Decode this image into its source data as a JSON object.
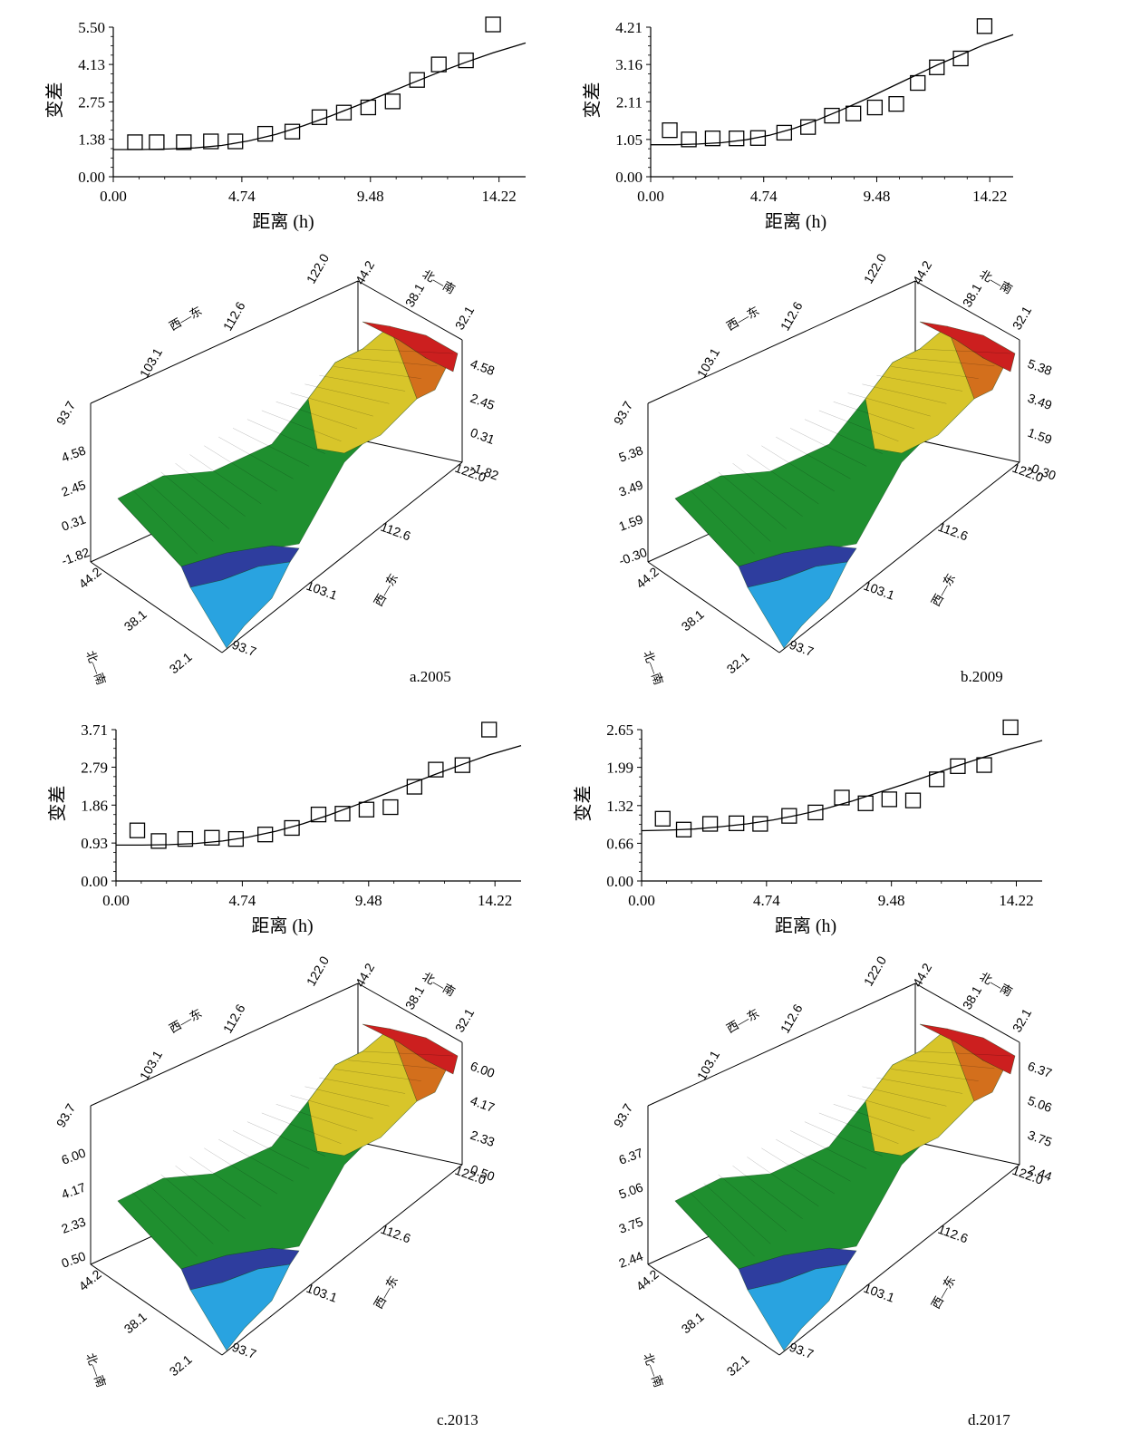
{
  "chart_data": [
    {
      "type": "scatter",
      "panel": "a",
      "xlabel": "距离 (h)",
      "ylabel": "变差",
      "xticks": [
        "0.00",
        "4.74",
        "9.48",
        "14.22"
      ],
      "yticks": [
        "0.00",
        "1.38",
        "2.75",
        "4.13",
        "5.50"
      ],
      "xlim": [
        0,
        15.2
      ],
      "ylim": [
        0,
        5.5
      ],
      "points": [
        [
          0.8,
          1.27
        ],
        [
          1.6,
          1.27
        ],
        [
          2.6,
          1.27
        ],
        [
          3.6,
          1.3
        ],
        [
          4.5,
          1.3
        ],
        [
          5.6,
          1.58
        ],
        [
          6.6,
          1.66
        ],
        [
          7.6,
          2.19
        ],
        [
          8.5,
          2.36
        ],
        [
          9.4,
          2.55
        ],
        [
          10.3,
          2.77
        ],
        [
          11.2,
          3.56
        ],
        [
          12.0,
          4.13
        ],
        [
          13.0,
          4.28
        ],
        [
          14.0,
          5.6
        ]
      ],
      "model": [
        [
          0,
          1.0
        ],
        [
          1,
          1.0
        ],
        [
          2,
          1.02
        ],
        [
          3,
          1.06
        ],
        [
          4,
          1.15
        ],
        [
          5,
          1.32
        ],
        [
          6,
          1.56
        ],
        [
          7,
          1.87
        ],
        [
          8,
          2.23
        ],
        [
          9,
          2.62
        ],
        [
          10,
          3.03
        ],
        [
          11,
          3.44
        ],
        [
          12,
          3.84
        ],
        [
          13,
          4.21
        ],
        [
          14,
          4.56
        ],
        [
          15.2,
          4.92
        ]
      ],
      "caption": ""
    },
    {
      "type": "scatter",
      "panel": "b",
      "xlabel": "距离 (h)",
      "ylabel": "变差",
      "xticks": [
        "0.00",
        "4.74",
        "9.48",
        "14.22"
      ],
      "yticks": [
        "0.00",
        "1.05",
        "2.11",
        "3.16",
        "4.21"
      ],
      "xlim": [
        0,
        15.2
      ],
      "ylim": [
        0,
        4.21
      ],
      "points": [
        [
          0.8,
          1.31
        ],
        [
          1.6,
          1.05
        ],
        [
          2.6,
          1.08
        ],
        [
          3.6,
          1.08
        ],
        [
          4.5,
          1.09
        ],
        [
          5.6,
          1.24
        ],
        [
          6.6,
          1.4
        ],
        [
          7.6,
          1.72
        ],
        [
          8.5,
          1.78
        ],
        [
          9.4,
          1.95
        ],
        [
          10.3,
          2.05
        ],
        [
          11.2,
          2.64
        ],
        [
          12.0,
          3.08
        ],
        [
          13.0,
          3.33
        ],
        [
          14.0,
          4.24
        ]
      ],
      "model": [
        [
          0,
          0.9
        ],
        [
          1,
          0.9
        ],
        [
          2,
          0.92
        ],
        [
          3,
          0.96
        ],
        [
          4,
          1.04
        ],
        [
          5,
          1.17
        ],
        [
          6,
          1.36
        ],
        [
          7,
          1.6
        ],
        [
          8,
          1.88
        ],
        [
          9,
          2.18
        ],
        [
          10,
          2.5
        ],
        [
          11,
          2.82
        ],
        [
          12,
          3.14
        ],
        [
          13,
          3.43
        ],
        [
          14,
          3.72
        ],
        [
          15.2,
          4.0
        ]
      ],
      "caption": "b.2009"
    },
    {
      "type": "scatter",
      "panel": "c",
      "xlabel": "距离 (h)",
      "ylabel": "变差",
      "xticks": [
        "0.00",
        "4.74",
        "9.48",
        "14.22"
      ],
      "yticks": [
        "0.00",
        "0.93",
        "1.86",
        "2.79",
        "3.71"
      ],
      "xlim": [
        0,
        15.2
      ],
      "ylim": [
        0,
        3.71
      ],
      "points": [
        [
          0.8,
          1.24
        ],
        [
          1.6,
          0.98
        ],
        [
          2.6,
          1.03
        ],
        [
          3.6,
          1.06
        ],
        [
          4.5,
          1.03
        ],
        [
          5.6,
          1.14
        ],
        [
          6.6,
          1.3
        ],
        [
          7.6,
          1.63
        ],
        [
          8.5,
          1.65
        ],
        [
          9.4,
          1.75
        ],
        [
          10.3,
          1.81
        ],
        [
          11.2,
          2.31
        ],
        [
          12.0,
          2.73
        ],
        [
          13.0,
          2.84
        ],
        [
          14.0,
          3.71
        ]
      ],
      "model": [
        [
          0,
          0.88
        ],
        [
          1,
          0.88
        ],
        [
          2,
          0.89
        ],
        [
          3,
          0.92
        ],
        [
          4,
          0.98
        ],
        [
          5,
          1.08
        ],
        [
          6,
          1.22
        ],
        [
          7,
          1.4
        ],
        [
          8,
          1.62
        ],
        [
          9,
          1.86
        ],
        [
          10,
          2.11
        ],
        [
          11,
          2.37
        ],
        [
          12,
          2.62
        ],
        [
          13,
          2.86
        ],
        [
          14,
          3.09
        ],
        [
          15.2,
          3.32
        ]
      ],
      "caption": "c.2013"
    },
    {
      "type": "scatter",
      "panel": "d",
      "xlabel": "距离 (h)",
      "ylabel": "变差",
      "xticks": [
        "0.00",
        "4.74",
        "9.48",
        "14.22"
      ],
      "yticks": [
        "0.00",
        "0.66",
        "1.32",
        "1.99",
        "2.65"
      ],
      "xlim": [
        0,
        15.2
      ],
      "ylim": [
        0,
        2.65
      ],
      "points": [
        [
          0.8,
          1.09
        ],
        [
          1.6,
          0.9
        ],
        [
          2.6,
          1.0
        ],
        [
          3.6,
          1.01
        ],
        [
          4.5,
          1.0
        ],
        [
          5.6,
          1.14
        ],
        [
          6.6,
          1.2
        ],
        [
          7.6,
          1.46
        ],
        [
          8.5,
          1.36
        ],
        [
          9.4,
          1.43
        ],
        [
          10.3,
          1.41
        ],
        [
          11.2,
          1.78
        ],
        [
          12.0,
          2.01
        ],
        [
          13.0,
          2.03
        ],
        [
          14.0,
          2.69
        ]
      ],
      "model": [
        [
          0,
          0.88
        ],
        [
          1,
          0.89
        ],
        [
          2,
          0.91
        ],
        [
          3,
          0.95
        ],
        [
          4,
          1.0
        ],
        [
          5,
          1.07
        ],
        [
          6,
          1.16
        ],
        [
          7,
          1.27
        ],
        [
          8,
          1.4
        ],
        [
          9,
          1.55
        ],
        [
          10,
          1.7
        ],
        [
          11,
          1.86
        ],
        [
          12,
          2.02
        ],
        [
          13,
          2.17
        ],
        [
          14,
          2.31
        ],
        [
          15.2,
          2.46
        ]
      ],
      "caption": "d.2017"
    }
  ],
  "surface_plots": [
    {
      "panel": "a",
      "caption": "a.2005",
      "z_ticks": [
        "4.58",
        "2.45",
        "0.31",
        "-1.82"
      ],
      "x_ticks": [
        "93.7",
        "103.1",
        "112.6",
        "122.0"
      ],
      "y_ticks": [
        "44.2",
        "38.1",
        "32.1"
      ],
      "axis_labels": {
        "we": "西—东",
        "ns": "北—南"
      },
      "colors": [
        "#1f8f2f",
        "#2e3d9e",
        "#29a3e0",
        "#d8c52a",
        "#d36f1c",
        "#cc1f1f"
      ]
    },
    {
      "panel": "b",
      "caption": "b.2009",
      "z_ticks": [
        "5.38",
        "3.49",
        "1.59",
        "-0.30"
      ],
      "x_ticks": [
        "93.7",
        "103.1",
        "112.6",
        "122.0"
      ],
      "y_ticks": [
        "44.2",
        "38.1",
        "32.1"
      ],
      "axis_labels": {
        "we": "西—东",
        "ns": "北—南"
      },
      "colors": [
        "#1f8f2f",
        "#2e3d9e",
        "#29a3e0",
        "#d8c52a",
        "#d36f1c",
        "#cc1f1f"
      ]
    },
    {
      "panel": "c",
      "caption": "c.2013",
      "z_ticks": [
        "6.00",
        "4.17",
        "2.33",
        "0.50"
      ],
      "x_ticks": [
        "93.7",
        "103.1",
        "112.6",
        "122.0"
      ],
      "y_ticks": [
        "44.2",
        "38.1",
        "32.1"
      ],
      "axis_labels": {
        "we": "西—东",
        "ns": "北—南"
      },
      "colors": [
        "#1f8f2f",
        "#2e3d9e",
        "#29a3e0",
        "#d8c52a",
        "#d36f1c",
        "#cc1f1f"
      ]
    },
    {
      "panel": "d",
      "caption": "d.2017",
      "z_ticks": [
        "6.37",
        "5.06",
        "3.75",
        "2.44"
      ],
      "x_ticks": [
        "93.7",
        "103.1",
        "112.6",
        "122.0"
      ],
      "y_ticks": [
        "44.2",
        "38.1",
        "32.1"
      ],
      "axis_labels": {
        "we": "西—东",
        "ns": "北—南"
      },
      "colors": [
        "#1f8f2f",
        "#2e3d9e",
        "#29a3e0",
        "#d8c52a",
        "#d36f1c",
        "#cc1f1f"
      ]
    }
  ]
}
